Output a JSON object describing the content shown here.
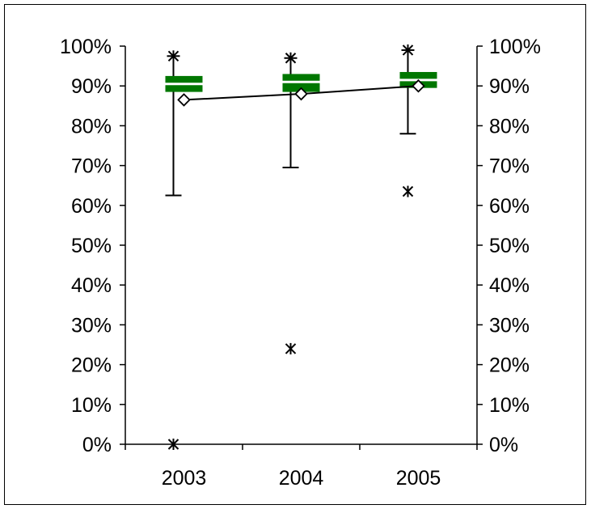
{
  "chart_data": {
    "type": "box",
    "categories": [
      "2003",
      "2004",
      "2005"
    ],
    "y_ticks": [
      "0%",
      "10%",
      "20%",
      "30%",
      "40%",
      "50%",
      "60%",
      "70%",
      "80%",
      "90%",
      "100%"
    ],
    "ylim": [
      0,
      100
    ],
    "y_unit": "%",
    "secondary_y_axis": true,
    "grid": false,
    "legend": "none",
    "boxes": [
      {
        "category": "2003",
        "whisker_low": 62.5,
        "q1": 88.5,
        "median": 90.5,
        "q3": 92.5,
        "whisker_high": 97.5,
        "mean": 86.5,
        "outliers": [
          97.5,
          0
        ]
      },
      {
        "category": "2004",
        "whisker_low": 69.5,
        "q1": 88.5,
        "median": 91.0,
        "q3": 93.0,
        "whisker_high": 97.0,
        "mean": 88.0,
        "outliers": [
          97.0,
          24.0
        ]
      },
      {
        "category": "2005",
        "whisker_low": 78.0,
        "q1": 89.5,
        "median": 91.5,
        "q3": 93.5,
        "whisker_high": 99.0,
        "mean": 90.0,
        "outliers": [
          99.0,
          63.5
        ]
      }
    ],
    "colors": {
      "box": "#007700",
      "line": "#000000",
      "mean_marker_fill": "#ffffff"
    }
  }
}
